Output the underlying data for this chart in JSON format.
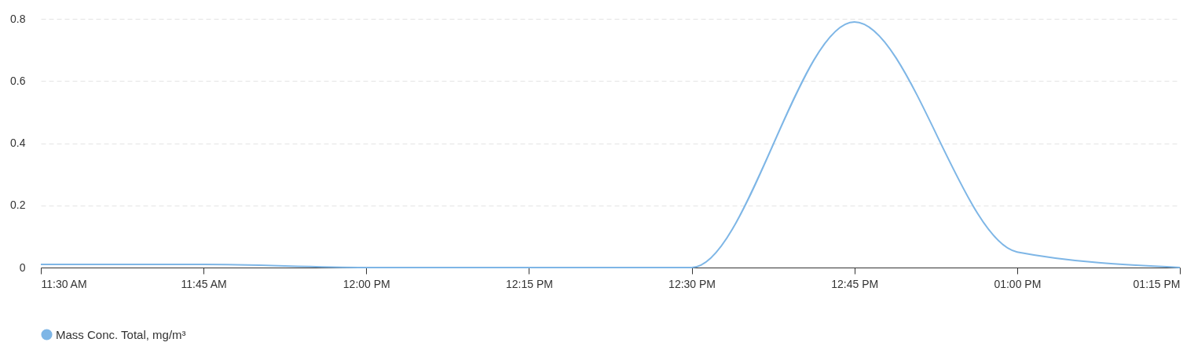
{
  "chart_data": {
    "type": "line",
    "x": [
      11.5,
      11.75,
      12,
      12.25,
      12.5,
      12.75,
      13,
      13.25
    ],
    "series": [
      {
        "name": "Mass Conc. Total, mg/m³",
        "color": "#7eb6e6",
        "values": [
          0.01,
          0.01,
          0,
          0,
          0,
          0.79,
          0.05,
          0
        ]
      }
    ],
    "xlim": [
      11.5,
      13.25
    ],
    "xticks": [
      {
        "value": 11.5,
        "label": "11:30 AM"
      },
      {
        "value": 11.75,
        "label": "11:45 AM"
      },
      {
        "value": 12,
        "label": "12:00 PM"
      },
      {
        "value": 12.25,
        "label": "12:15 PM"
      },
      {
        "value": 12.5,
        "label": "12:30 PM"
      },
      {
        "value": 12.75,
        "label": "12:45 PM"
      },
      {
        "value": 13,
        "label": "01:00 PM"
      },
      {
        "value": 13.25,
        "label": "01:15 PM"
      }
    ],
    "ylim": [
      0,
      0.8
    ],
    "yticks": [
      0,
      0.2,
      0.4,
      0.6,
      0.8
    ],
    "grid": "y",
    "legend": "bottom"
  }
}
